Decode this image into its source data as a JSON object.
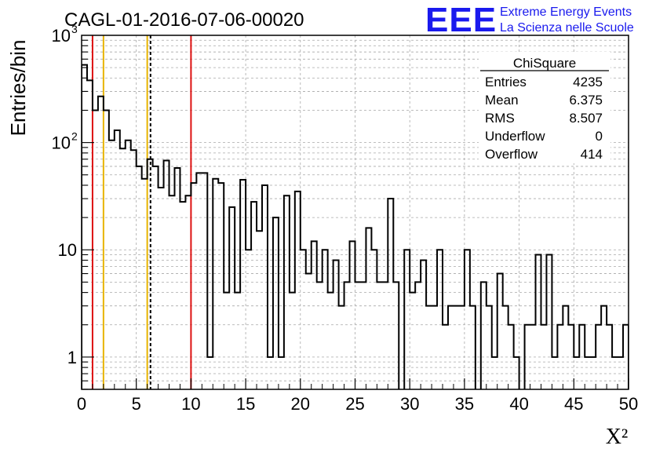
{
  "header": {
    "title": "CAGL-01-2016-07-06-00020",
    "logo_text": "EEE",
    "org_line1": "Extreme Energy Events",
    "org_line2": "La Scienza nelle Scuole"
  },
  "stats": {
    "title": "ChiSquare",
    "rows": [
      {
        "label": "Entries",
        "value": "4235"
      },
      {
        "label": "Mean",
        "value": "6.375"
      },
      {
        "label": "RMS",
        "value": "8.507"
      },
      {
        "label": "Underflow",
        "value": "0"
      },
      {
        "label": "Overflow",
        "value": "414"
      }
    ]
  },
  "colors": {
    "histogram": "#000000",
    "red_line": "#dd1111",
    "yellow_line": "#e8b400",
    "dashed_line": "#000000",
    "logo_blue": "#1a1aee",
    "grid": "#a8a8a8"
  },
  "chart_data": {
    "type": "histogram",
    "title": "CAGL-01-2016-07-06-00020",
    "xlabel": "X²",
    "ylabel": "Entries/bin",
    "xlim": [
      0,
      50
    ],
    "ylim": [
      0.5,
      1000
    ],
    "yscale": "log",
    "grid": true,
    "x_ticks": [
      "0",
      "5",
      "10",
      "15",
      "20",
      "25",
      "30",
      "35",
      "40",
      "45",
      "50"
    ],
    "y_ticks": [
      {
        "base": "1",
        "exp": ""
      },
      {
        "base": "10",
        "exp": ""
      },
      {
        "base": "10",
        "exp": "2"
      },
      {
        "base": "10",
        "exp": "3"
      }
    ],
    "bin_width": 0.5,
    "bin_start": 0,
    "values": [
      530,
      380,
      200,
      270,
      200,
      105,
      130,
      88,
      105,
      85,
      60,
      46,
      70,
      60,
      38,
      68,
      32,
      58,
      28,
      32,
      42,
      52,
      52,
      1,
      46,
      42,
      4,
      25,
      4,
      45,
      10,
      28,
      15,
      40,
      1,
      20,
      1,
      32,
      4,
      35,
      10,
      6,
      12,
      5,
      10,
      4,
      8,
      3,
      5,
      12,
      5,
      5,
      16,
      10,
      5,
      5,
      30,
      5,
      0,
      10,
      4,
      5,
      8,
      3,
      3,
      10,
      2,
      3,
      3,
      3,
      10,
      3,
      0.5,
      5,
      3,
      1,
      6,
      3,
      2,
      1,
      0.5,
      2,
      2,
      9,
      2,
      9,
      1,
      2,
      3,
      2,
      1,
      2,
      1,
      1,
      2,
      3,
      2,
      1,
      1,
      2
    ],
    "vertical_lines": [
      {
        "x": 1,
        "style": "solid",
        "color": "#dd1111"
      },
      {
        "x": 2,
        "style": "solid",
        "color": "#e8b400"
      },
      {
        "x": 6,
        "style": "solid",
        "color": "#e8b400"
      },
      {
        "x": 6.3,
        "style": "dashed",
        "color": "#000000"
      },
      {
        "x": 10,
        "style": "solid",
        "color": "#dd1111"
      }
    ]
  }
}
